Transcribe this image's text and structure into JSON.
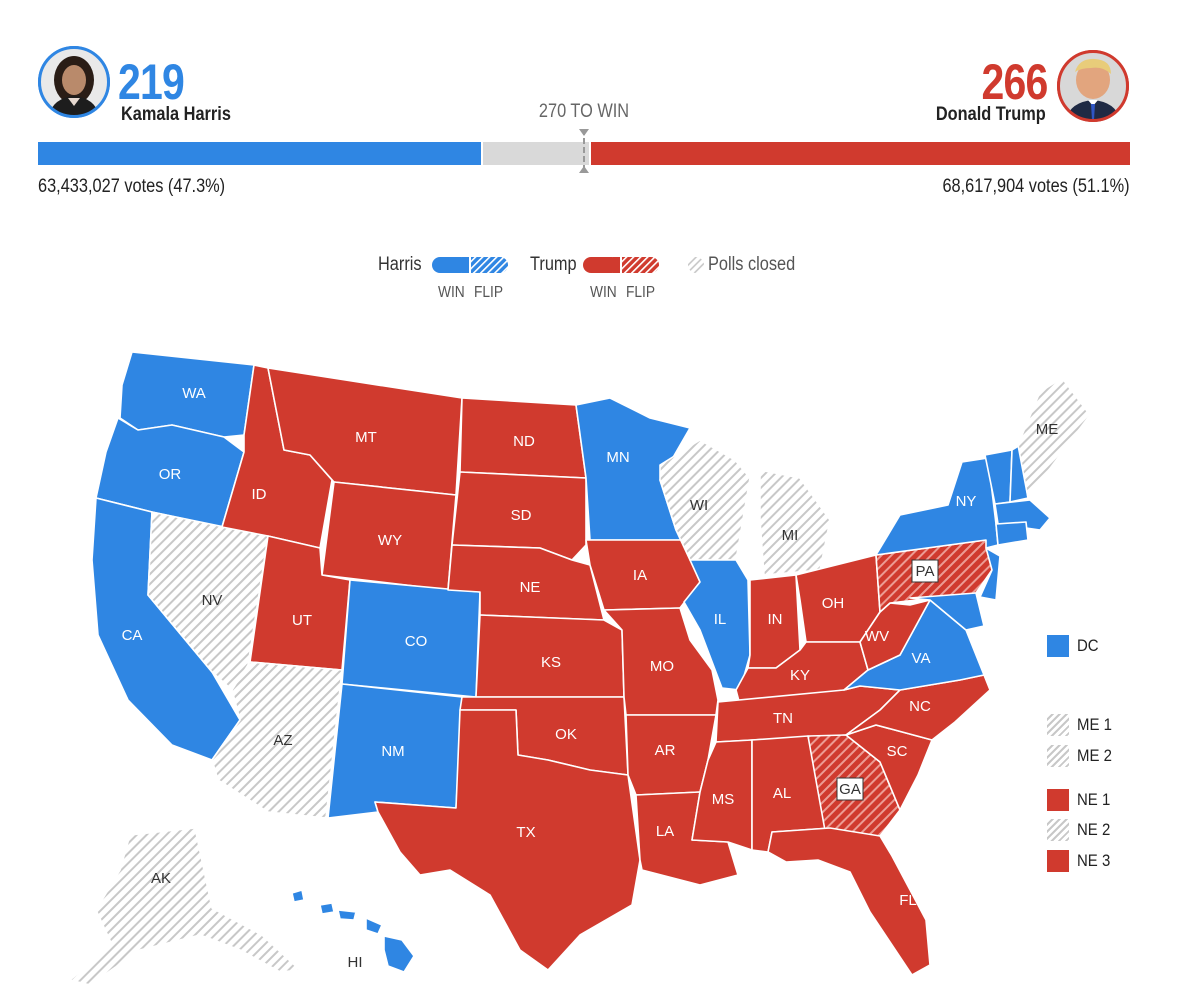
{
  "colors": {
    "harris_blue": "#2f86e3",
    "trump_red": "#d03a2e",
    "gray_bar": "#d9d9d9",
    "polls_closed_hatch": "#c8c8c8"
  },
  "harris": {
    "electoral_votes": "219",
    "name": "Kamala Harris",
    "popular_votes": "63,433,027 votes (47.3%)",
    "avatar_icon": "harris-portrait"
  },
  "trump": {
    "electoral_votes": "266",
    "name": "Donald Trump",
    "popular_votes": "68,617,904 votes (51.1%)",
    "avatar_icon": "trump-portrait"
  },
  "threshold_label": "270 TO WIN",
  "progress": {
    "harris_share": 0.406,
    "trump_share": 0.494
  },
  "legend": {
    "harris_label": "Harris",
    "trump_label": "Trump",
    "win_label": "WIN",
    "flip_label": "FLIP",
    "polls_closed_label": "Polls closed"
  },
  "states": {
    "WA": {
      "label": "WA",
      "status": "harris-win"
    },
    "OR": {
      "label": "OR",
      "status": "harris-win"
    },
    "CA": {
      "label": "CA",
      "status": "harris-win"
    },
    "NV": {
      "label": "NV",
      "status": "polls-closed"
    },
    "ID": {
      "label": "ID",
      "status": "trump-win"
    },
    "MT": {
      "label": "MT",
      "status": "trump-win"
    },
    "WY": {
      "label": "WY",
      "status": "trump-win"
    },
    "UT": {
      "label": "UT",
      "status": "trump-win"
    },
    "AZ": {
      "label": "AZ",
      "status": "polls-closed"
    },
    "CO": {
      "label": "CO",
      "status": "harris-win"
    },
    "NM": {
      "label": "NM",
      "status": "harris-win"
    },
    "ND": {
      "label": "ND",
      "status": "trump-win"
    },
    "SD": {
      "label": "SD",
      "status": "trump-win"
    },
    "NE": {
      "label": "NE",
      "status": "trump-win"
    },
    "KS": {
      "label": "KS",
      "status": "trump-win"
    },
    "OK": {
      "label": "OK",
      "status": "trump-win"
    },
    "TX": {
      "label": "TX",
      "status": "trump-win"
    },
    "MN": {
      "label": "MN",
      "status": "harris-win"
    },
    "IA": {
      "label": "IA",
      "status": "trump-win"
    },
    "MO": {
      "label": "MO",
      "status": "trump-win"
    },
    "AR": {
      "label": "AR",
      "status": "trump-win"
    },
    "LA": {
      "label": "LA",
      "status": "trump-win"
    },
    "WI": {
      "label": "WI",
      "status": "polls-closed"
    },
    "IL": {
      "label": "IL",
      "status": "harris-win"
    },
    "MI": {
      "label": "MI",
      "status": "polls-closed"
    },
    "IN": {
      "label": "IN",
      "status": "trump-win"
    },
    "OH": {
      "label": "OH",
      "status": "trump-win"
    },
    "KY": {
      "label": "KY",
      "status": "trump-win"
    },
    "TN": {
      "label": "TN",
      "status": "trump-win"
    },
    "MS": {
      "label": "MS",
      "status": "trump-win"
    },
    "AL": {
      "label": "AL",
      "status": "trump-win"
    },
    "GA": {
      "label": "GA",
      "status": "trump-flip"
    },
    "FL": {
      "label": "FL",
      "status": "trump-win"
    },
    "SC": {
      "label": "SC",
      "status": "trump-win"
    },
    "NC": {
      "label": "NC",
      "status": "trump-win"
    },
    "VA": {
      "label": "VA",
      "status": "harris-win"
    },
    "WV": {
      "label": "WV",
      "status": "trump-win"
    },
    "PA": {
      "label": "PA",
      "status": "trump-flip"
    },
    "NY": {
      "label": "NY",
      "status": "harris-win"
    },
    "ME": {
      "label": "ME",
      "status": "polls-closed"
    },
    "AK": {
      "label": "AK",
      "status": "polls-closed"
    },
    "HI": {
      "label": "HI",
      "status": "harris-win"
    }
  },
  "districts": {
    "DC": {
      "label": "DC",
      "status": "harris-win"
    },
    "ME1": {
      "label": "ME 1",
      "status": "polls-closed"
    },
    "ME2": {
      "label": "ME 2",
      "status": "polls-closed"
    },
    "NE1": {
      "label": "NE 1",
      "status": "trump-win"
    },
    "NE2": {
      "label": "NE 2",
      "status": "polls-closed"
    },
    "NE3": {
      "label": "NE 3",
      "status": "trump-win"
    }
  }
}
